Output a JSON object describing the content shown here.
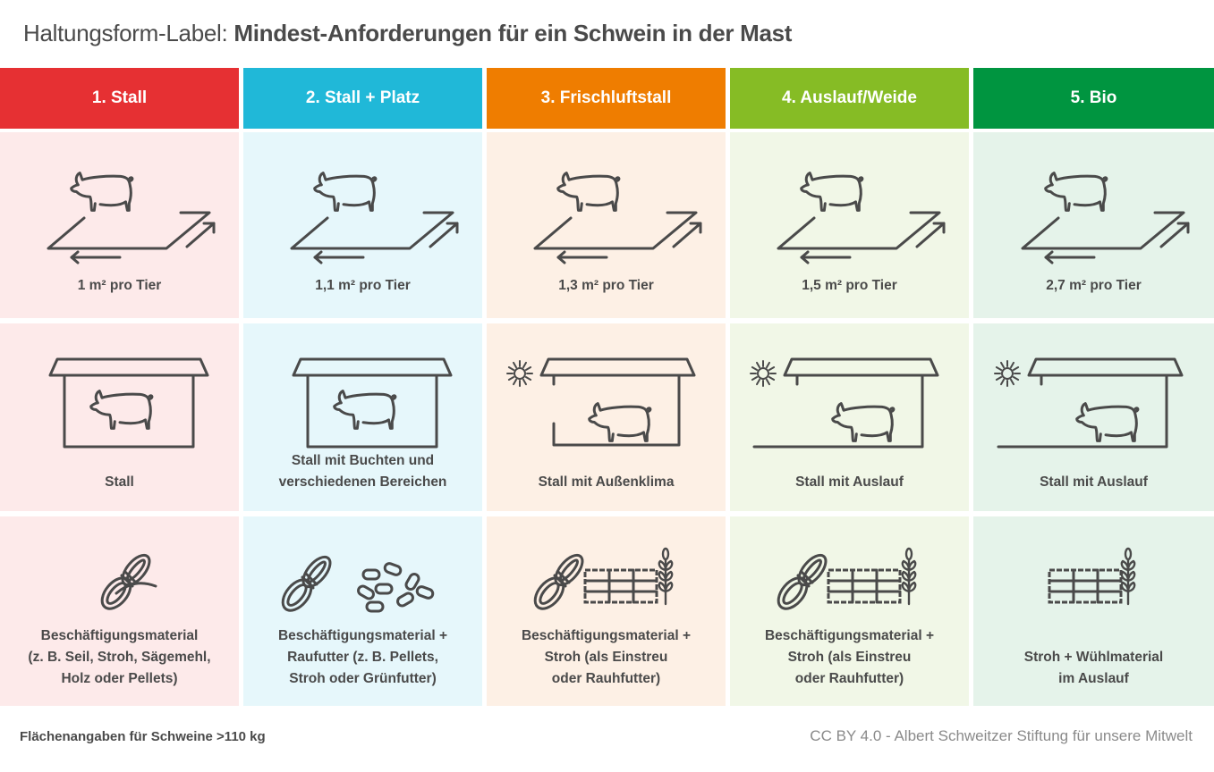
{
  "title": {
    "prefix": "Haltungsform-Label: ",
    "main": "Mindest-Anforderungen für ein Schwein in der Mast"
  },
  "columns": [
    {
      "label": "1. Stall",
      "header_color": "#e63033",
      "bg_color": "#fdeaea",
      "space": "1 m² pro Tier",
      "housing_icon": "closed-barn-icon",
      "housing": "Stall",
      "enrichment_icons": [
        "rope-icon"
      ],
      "enrichment": [
        "Beschäftigungsmaterial",
        "(z. B. Seil, Stroh, Sägemehl,",
        "Holz oder Pellets)"
      ]
    },
    {
      "label": "2. Stall + Platz",
      "header_color": "#20b8d8",
      "bg_color": "#e6f7fb",
      "space": "1,1 m² pro Tier",
      "housing_icon": "closed-barn-icon",
      "housing": [
        "Stall mit Buchten und",
        "verschiedenen Bereichen"
      ],
      "enrichment_icons": [
        "rope-icon",
        "pellets-icon"
      ],
      "enrichment": [
        "Beschäftigungsmaterial +",
        "Raufutter (z. B. Pellets,",
        "Stroh oder Grünfutter)"
      ]
    },
    {
      "label": "3. Frischluftstall",
      "header_color": "#ef7d00",
      "bg_color": "#fdf0e5",
      "space": "1,3 m² pro Tier",
      "housing_icon": "open-barn-sun-icon",
      "housing": "Stall mit Außenklima",
      "enrichment_icons": [
        "rope-icon",
        "straw-bale-icon",
        "wheat-icon"
      ],
      "enrichment": [
        "Beschäftigungsmaterial +",
        "Stroh (als Einstreu",
        "oder Rauhfutter)"
      ]
    },
    {
      "label": "4. Auslauf/Weide",
      "header_color": "#86bc25",
      "bg_color": "#f1f7e7",
      "space": "1,5 m² pro Tier",
      "housing_icon": "barn-with-run-sun-icon",
      "housing": "Stall mit Auslauf",
      "enrichment_icons": [
        "rope-icon",
        "straw-bale-icon",
        "wheat-icon"
      ],
      "enrichment": [
        "Beschäftigungsmaterial +",
        "Stroh (als Einstreu",
        "oder Rauhfutter)"
      ]
    },
    {
      "label": "5. Bio",
      "header_color": "#009540",
      "bg_color": "#e5f3ea",
      "space": "2,7 m² pro Tier",
      "housing_icon": "barn-with-run-sun-icon",
      "housing": "Stall mit Auslauf",
      "enrichment_icons": [
        "straw-bale-icon",
        "wheat-icon"
      ],
      "enrichment": [
        "Stroh + Wühlmaterial",
        "im Auslauf"
      ]
    }
  ],
  "footer": {
    "note": "Flächenangaben für Schweine >110 kg",
    "credit": "CC BY 4.0 -  Albert Schweitzer Stiftung für unsere Mitwelt"
  }
}
